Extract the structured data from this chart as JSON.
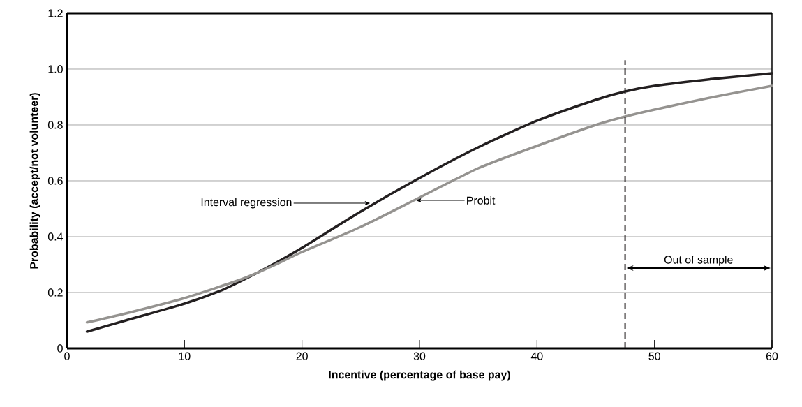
{
  "chart_data": {
    "type": "line",
    "xlabel": "Incentive (percentage of base pay)",
    "ylabel": "Probability (accept/not volunteer)",
    "xlim": [
      0,
      60
    ],
    "ylim": [
      0,
      1.2
    ],
    "xticks": [
      0,
      10,
      20,
      30,
      40,
      50,
      60
    ],
    "yticks": [
      0,
      {
        "value": 0.2,
        "label": "0.2"
      },
      {
        "value": 0.4,
        "label": "0.4"
      },
      {
        "value": 0.6,
        "label": "0.6"
      },
      {
        "value": 0.8,
        "label": "0.8"
      },
      {
        "value": 1,
        "label": "1.0"
      },
      {
        "value": 1.2,
        "label": "1.2"
      }
    ],
    "grid": "y",
    "line_style": "solid",
    "series": [
      {
        "color": "#231f20",
        "x": [
          1.7,
          5,
          10,
          13,
          15,
          17.5,
          20,
          25,
          30,
          35,
          40,
          45,
          47.5,
          50,
          55,
          60
        ],
        "values": [
          0.06,
          0.1,
          0.16,
          0.205,
          0.245,
          0.3,
          0.36,
          0.49,
          0.61,
          0.72,
          0.815,
          0.89,
          0.92,
          0.94,
          0.965,
          0.985
        ]
      },
      {
        "color": "#959390",
        "x": [
          1.7,
          5,
          10,
          15,
          17.5,
          20,
          25,
          30,
          35,
          40,
          45,
          47.5,
          50,
          55,
          60
        ],
        "values": [
          0.093,
          0.125,
          0.18,
          0.25,
          0.295,
          0.345,
          0.435,
          0.54,
          0.645,
          0.725,
          0.8,
          0.83,
          0.855,
          0.9,
          0.94
        ]
      }
    ],
    "ref_lines": [
      {
        "axis": "x",
        "value": 47.5,
        "line_style": "dashed",
        "color": "#231f20"
      }
    ],
    "annotations": [
      {
        "text": "Interval regression",
        "x": 26,
        "y": 0.52
      },
      {
        "text": "Probit",
        "x": 29.5,
        "y": 0.53
      },
      "Out of sample"
    ]
  }
}
